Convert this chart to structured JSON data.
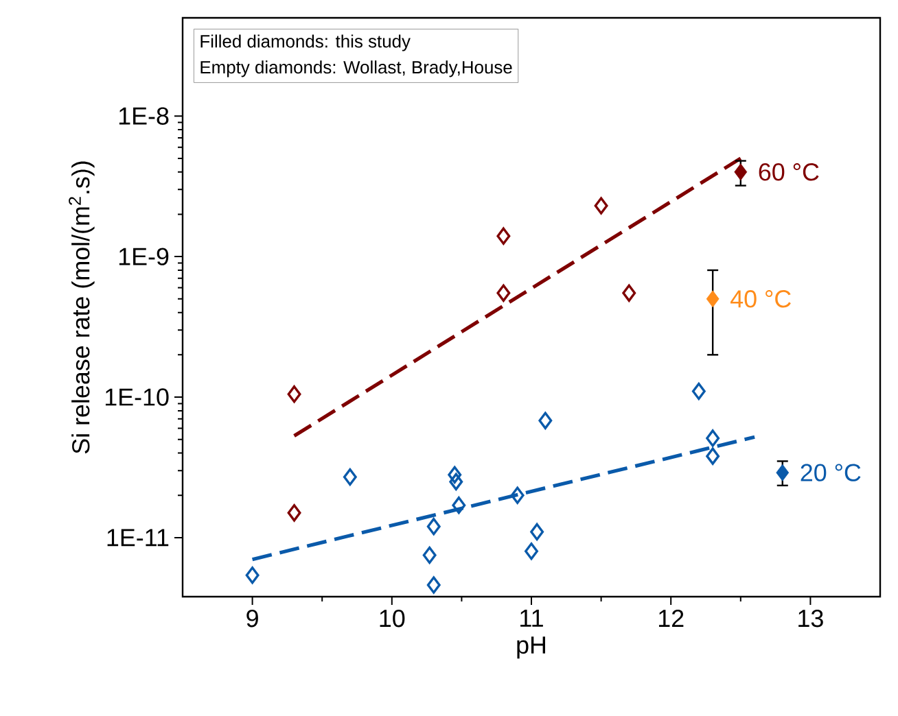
{
  "chart_data": {
    "type": "scatter",
    "xlabel": "pH",
    "ylabel": "Si release rate (mol/(m$^{2}$.s))",
    "xlim": [
      8.5,
      13.5
    ],
    "xticks": [
      9,
      10,
      11,
      12,
      13
    ],
    "ylim": [
      3.8e-12,
      5e-08
    ],
    "yticks": [
      {
        "value": 1e-11,
        "label": "1E-11"
      },
      {
        "value": 1e-10,
        "label": "1E-10"
      },
      {
        "value": 1e-09,
        "label": "1E-9"
      },
      {
        "value": 1e-08,
        "label": "1E-8"
      }
    ],
    "log": true,
    "marker": "diamond",
    "annotations": [
      "Filled diamonds: this study",
      "Empty diamonds: Wollast, Brady,House"
    ],
    "series": [
      {
        "color": "#7f0000",
        "x": [
          9.3,
          9.3,
          10.8,
          10.8,
          11.5,
          11.7
        ],
        "values": [
          1.05e-10,
          1.5e-11,
          1.4e-09,
          5.5e-10,
          2.3e-09,
          5.5e-10
        ]
      },
      {
        "type": "line",
        "line_style": "dashed",
        "marker": "none",
        "color": "#7f0000",
        "x": [
          9.3,
          12.5
        ],
        "values": [
          5.3e-11,
          5e-09
        ]
      },
      {
        "name": "60 °C",
        "color": "#7f0000",
        "x": [
          12.5
        ],
        "values": [
          4e-09
        ],
        "errors": [
          [
            3.2e-09,
            4.8e-09
          ]
        ]
      },
      {
        "name": "40 °C",
        "color": "#ff8c1a",
        "x": [
          12.3
        ],
        "values": [
          5e-10
        ],
        "errors": [
          [
            2e-10,
            8e-10
          ]
        ]
      },
      {
        "color": "#0a5aaa",
        "x": [
          9.0,
          9.7,
          10.3,
          10.27,
          10.3,
          10.45,
          10.46,
          10.48,
          10.9,
          11.04,
          11.0,
          11.1,
          12.2,
          12.3,
          12.3
        ],
        "values": [
          5.4e-12,
          2.7e-11,
          1.2e-11,
          7.5e-12,
          4.6e-12,
          2.8e-11,
          2.5e-11,
          1.7e-11,
          2e-11,
          1.1e-11,
          8e-12,
          6.8e-11,
          1.1e-10,
          5.1e-11,
          3.8e-11
        ]
      },
      {
        "type": "line",
        "line_style": "dashed",
        "marker": "none",
        "color": "#0a5aaa",
        "x": [
          9.0,
          12.6
        ],
        "values": [
          7e-12,
          5.2e-11
        ]
      },
      {
        "name": "20 °C",
        "color": "#0a5aaa",
        "x": [
          12.8
        ],
        "values": [
          2.9e-11
        ],
        "errors": [
          [
            2.35e-11,
            3.5e-11
          ]
        ]
      }
    ]
  }
}
